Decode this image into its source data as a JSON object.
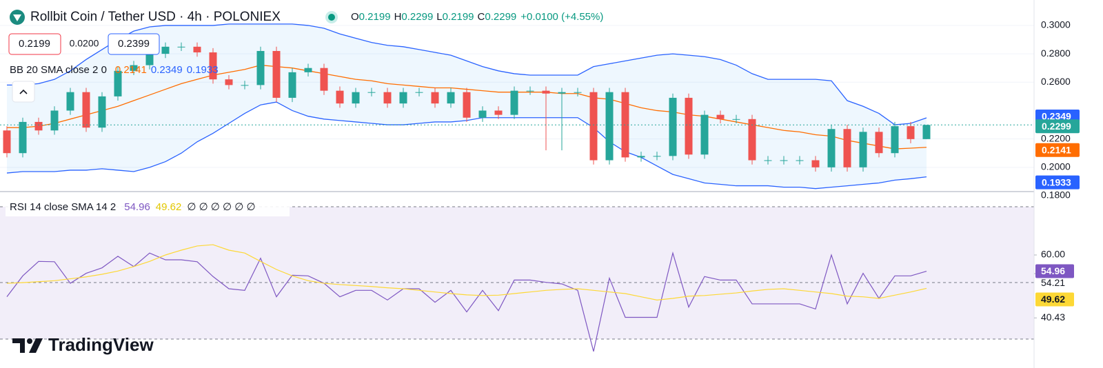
{
  "chart_data": {
    "type": "candlestick",
    "title": "Rollbit Coin / Tether USD · 4h · POLONIEX",
    "ohlc_legend": [
      {
        "label": "O",
        "value": "0.2199"
      },
      {
        "label": "H",
        "value": "0.2299"
      },
      {
        "label": "L",
        "value": "0.2199"
      },
      {
        "label": "C",
        "value": "0.2299"
      }
    ],
    "change": "+0.0100 (+4.55%)",
    "trade": {
      "sell": "0.2199",
      "spread": "0.0200",
      "buy": "0.2399"
    },
    "up_color": "#26a69a",
    "down_color": "#ef5350",
    "open": [
      0.226,
      0.21,
      0.232,
      0.226,
      0.24,
      0.253,
      0.228,
      0.25,
      0.268,
      0.272,
      0.28,
      0.285,
      0.285,
      0.281,
      0.262,
      0.258,
      0.258,
      0.282,
      0.249,
      0.267,
      0.27,
      0.254,
      0.245,
      0.253,
      0.253,
      0.245,
      0.253,
      0.253,
      0.245,
      0.253,
      0.235,
      0.24,
      0.237,
      0.254,
      0.254,
      0.252,
      0.253,
      0.253,
      0.205,
      0.253,
      0.207,
      0.208,
      0.208,
      0.249,
      0.209,
      0.237,
      0.234,
      0.234,
      0.205,
      0.205,
      0.205,
      0.205,
      0.2,
      0.227,
      0.2,
      0.225,
      0.21,
      0.229,
      0.2199
    ],
    "high": [
      0.229,
      0.235,
      0.235,
      0.243,
      0.256,
      0.256,
      0.253,
      0.271,
      0.275,
      0.283,
      0.288,
      0.288,
      0.288,
      0.284,
      0.265,
      0.261,
      0.285,
      0.285,
      0.27,
      0.273,
      0.273,
      0.257,
      0.256,
      0.256,
      0.256,
      0.256,
      0.256,
      0.256,
      0.256,
      0.256,
      0.243,
      0.243,
      0.257,
      0.257,
      0.257,
      0.256,
      0.256,
      0.256,
      0.256,
      0.256,
      0.211,
      0.211,
      0.252,
      0.252,
      0.24,
      0.24,
      0.237,
      0.237,
      0.208,
      0.208,
      0.208,
      0.208,
      0.23,
      0.23,
      0.228,
      0.228,
      0.232,
      0.232,
      0.2299
    ],
    "low": [
      0.207,
      0.207,
      0.223,
      0.223,
      0.237,
      0.225,
      0.225,
      0.247,
      0.265,
      0.269,
      0.277,
      0.282,
      0.278,
      0.259,
      0.255,
      0.255,
      0.255,
      0.246,
      0.246,
      0.264,
      0.251,
      0.242,
      0.242,
      0.25,
      0.242,
      0.242,
      0.25,
      0.242,
      0.242,
      0.232,
      0.232,
      0.234,
      0.234,
      0.251,
      0.212,
      0.212,
      0.25,
      0.202,
      0.202,
      0.204,
      0.204,
      0.205,
      0.205,
      0.206,
      0.206,
      0.231,
      0.231,
      0.202,
      0.202,
      0.202,
      0.202,
      0.197,
      0.197,
      0.197,
      0.197,
      0.207,
      0.207,
      0.217,
      0.2199
    ],
    "close": [
      0.21,
      0.232,
      0.226,
      0.24,
      0.253,
      0.228,
      0.25,
      0.268,
      0.272,
      0.28,
      0.285,
      0.285,
      0.281,
      0.262,
      0.258,
      0.258,
      0.282,
      0.249,
      0.267,
      0.27,
      0.254,
      0.245,
      0.253,
      0.253,
      0.245,
      0.253,
      0.253,
      0.245,
      0.253,
      0.235,
      0.24,
      0.237,
      0.254,
      0.254,
      0.252,
      0.253,
      0.253,
      0.205,
      0.253,
      0.207,
      0.208,
      0.208,
      0.249,
      0.209,
      0.237,
      0.234,
      0.234,
      0.205,
      0.205,
      0.205,
      0.205,
      0.2,
      0.227,
      0.2,
      0.225,
      0.21,
      0.229,
      0.2199,
      0.2299
    ],
    "ylim": [
      0.18,
      0.3155
    ],
    "yticks": [
      {
        "value": 0.3,
        "label": "0.3000"
      },
      {
        "value": 0.28,
        "label": "0.2800"
      },
      {
        "value": 0.26,
        "label": "0.2600"
      },
      {
        "value": 0.22,
        "label": "0.2200"
      },
      {
        "value": 0.2,
        "label": "0.2000"
      },
      {
        "value": 0.18,
        "label": "0.1800"
      }
    ],
    "bb": {
      "label": "BB 20 SMA close 2 0",
      "fill": "#2196f3",
      "series": [
        {
          "color": "#ff6d00",
          "values": [
            0.228,
            0.228,
            0.229,
            0.231,
            0.234,
            0.237,
            0.24,
            0.243,
            0.247,
            0.251,
            0.255,
            0.259,
            0.262,
            0.265,
            0.267,
            0.269,
            0.272,
            0.271,
            0.27,
            0.268,
            0.266,
            0.264,
            0.262,
            0.261,
            0.259,
            0.258,
            0.257,
            0.256,
            0.256,
            0.255,
            0.254,
            0.253,
            0.253,
            0.253,
            0.253,
            0.252,
            0.252,
            0.249,
            0.248,
            0.245,
            0.242,
            0.24,
            0.239,
            0.237,
            0.236,
            0.234,
            0.232,
            0.23,
            0.228,
            0.226,
            0.225,
            0.223,
            0.222,
            0.219,
            0.217,
            0.215,
            0.213,
            0.2135,
            0.2141
          ]
        },
        {
          "color": "#2962ff",
          "values": [
            0.258,
            0.258,
            0.259,
            0.262,
            0.268,
            0.276,
            0.283,
            0.29,
            0.296,
            0.299,
            0.3,
            0.3,
            0.3,
            0.3,
            0.301,
            0.301,
            0.301,
            0.301,
            0.301,
            0.3,
            0.298,
            0.294,
            0.291,
            0.288,
            0.286,
            0.285,
            0.283,
            0.281,
            0.279,
            0.275,
            0.271,
            0.268,
            0.266,
            0.265,
            0.265,
            0.265,
            0.265,
            0.271,
            0.273,
            0.275,
            0.277,
            0.279,
            0.28,
            0.279,
            0.278,
            0.276,
            0.272,
            0.266,
            0.262,
            0.262,
            0.262,
            0.262,
            0.261,
            0.247,
            0.243,
            0.238,
            0.23,
            0.231,
            0.2349
          ]
        },
        {
          "color": "#2962ff",
          "values": [
            0.196,
            0.197,
            0.197,
            0.197,
            0.198,
            0.198,
            0.199,
            0.198,
            0.197,
            0.2,
            0.204,
            0.21,
            0.218,
            0.224,
            0.231,
            0.238,
            0.244,
            0.246,
            0.24,
            0.236,
            0.234,
            0.233,
            0.232,
            0.231,
            0.23,
            0.23,
            0.231,
            0.232,
            0.232,
            0.233,
            0.235,
            0.235,
            0.235,
            0.235,
            0.235,
            0.235,
            0.235,
            0.228,
            0.218,
            0.211,
            0.207,
            0.201,
            0.195,
            0.192,
            0.189,
            0.188,
            0.187,
            0.187,
            0.187,
            0.186,
            0.186,
            0.185,
            0.186,
            0.187,
            0.188,
            0.189,
            0.191,
            0.192,
            0.1933
          ]
        }
      ]
    },
    "rsi": {
      "label": "RSI 14 close SMA 14 2",
      "empty_values": "∅ ∅ ∅ ∅ ∅ ∅",
      "ylim": [
        30,
        75
      ],
      "yticks": [
        40.43,
        54.21,
        {
          "value": 60,
          "label": "60.00"
        }
      ],
      "band_color": "#7e57c2",
      "series": [
        {
          "color": "#7e57c2",
          "values": [
            47,
            53.5,
            58,
            57.9,
            51.2,
            54.3,
            56,
            59.6,
            56.4,
            60.6,
            58.5,
            58.5,
            57.9,
            53.3,
            49.5,
            49,
            59,
            47,
            53.7,
            53.5,
            51.2,
            47,
            49,
            49,
            46,
            49.5,
            49.5,
            45.3,
            49,
            42.3,
            49,
            42.7,
            52.2,
            52.2,
            51.5,
            51,
            49,
            30,
            52.8,
            40.6,
            40.6,
            40.6,
            60.6,
            43.8,
            53.3,
            52.2,
            52.2,
            44.8,
            44.8,
            44.8,
            44.8,
            43.2,
            60,
            44.8,
            54.3,
            46.5,
            53.5,
            53.5,
            54.96
          ]
        },
        {
          "color": "#fdd835",
          "values": [
            51.2,
            51.4,
            51.7,
            52,
            52.6,
            53.2,
            54,
            55,
            56.4,
            58,
            60,
            61.5,
            62.8,
            63.2,
            61.5,
            60.6,
            58,
            55.5,
            53.5,
            52,
            51.2,
            50.8,
            50.5,
            50.2,
            49.8,
            49.5,
            49,
            48.5,
            48,
            47.6,
            47.4,
            47.5,
            48,
            48.5,
            49,
            49.3,
            49.5,
            49,
            48.5,
            48,
            47,
            46,
            46.5,
            47.2,
            47.4,
            47.8,
            48.2,
            48.8,
            49.3,
            49.5,
            49,
            48.5,
            48,
            47.2,
            47,
            46.5,
            47.5,
            48.5,
            49.62
          ]
        }
      ]
    },
    "brand": "TradingView"
  }
}
